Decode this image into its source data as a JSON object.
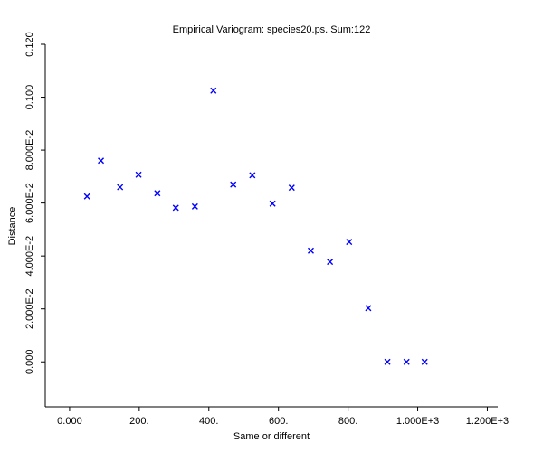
{
  "chart_data": {
    "type": "scatter",
    "title": "Empirical Variogram: species20.ps. Sum:122",
    "xlabel": "Same or different",
    "ylabel": "Distance",
    "xlim": [
      -70,
      1230
    ],
    "ylim": [
      -0.017,
      0.12
    ],
    "x_ticks": [
      {
        "value": 0,
        "label": "0.000"
      },
      {
        "value": 200,
        "label": "200."
      },
      {
        "value": 400,
        "label": "400."
      },
      {
        "value": 600,
        "label": "600."
      },
      {
        "value": 800,
        "label": "800."
      },
      {
        "value": 1000,
        "label": "1.000E+3"
      },
      {
        "value": 1200,
        "label": "1.200E+3"
      }
    ],
    "y_ticks": [
      {
        "value": 0,
        "label": "0.000"
      },
      {
        "value": 0.02,
        "label": "2.000E-2"
      },
      {
        "value": 0.04,
        "label": "4.000E-2"
      },
      {
        "value": 0.06,
        "label": "6.000E-2"
      },
      {
        "value": 0.08,
        "label": "8.000E-2"
      },
      {
        "value": 0.1,
        "label": "0.100"
      },
      {
        "value": 0.12,
        "label": "0.120"
      }
    ],
    "marker": "x",
    "marker_color": "#0000ff",
    "grid": false,
    "points": [
      {
        "x": 50,
        "y": 0.0625
      },
      {
        "x": 90,
        "y": 0.076
      },
      {
        "x": 145,
        "y": 0.066
      },
      {
        "x": 198,
        "y": 0.0707
      },
      {
        "x": 252,
        "y": 0.0637
      },
      {
        "x": 305,
        "y": 0.0582
      },
      {
        "x": 360,
        "y": 0.0587
      },
      {
        "x": 413,
        "y": 0.1025
      },
      {
        "x": 470,
        "y": 0.067
      },
      {
        "x": 525,
        "y": 0.0705
      },
      {
        "x": 583,
        "y": 0.0598
      },
      {
        "x": 638,
        "y": 0.0658
      },
      {
        "x": 693,
        "y": 0.042
      },
      {
        "x": 748,
        "y": 0.0378
      },
      {
        "x": 803,
        "y": 0.0453
      },
      {
        "x": 858,
        "y": 0.0203
      },
      {
        "x": 913,
        "y": 0.0
      },
      {
        "x": 968,
        "y": 0.0
      },
      {
        "x": 1020,
        "y": 0.0
      }
    ]
  }
}
